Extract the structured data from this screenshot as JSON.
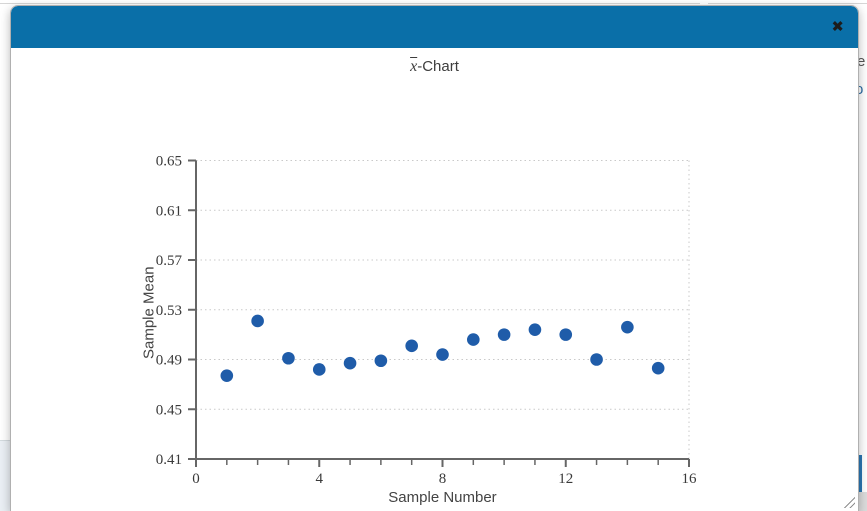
{
  "modal": {
    "close_label": "✖",
    "header_color": "#0a6fa8"
  },
  "chart_title": {
    "title_x": "x",
    "title_suffix": "-Chart"
  },
  "background": {
    "right_fragments": [
      {
        "text": "e"
      },
      {
        "text": "o"
      }
    ]
  },
  "chart_data": {
    "type": "scatter",
    "title": "x̄-Chart",
    "xlabel": "Sample Number",
    "ylabel": "Sample Mean",
    "xlim": [
      0,
      16
    ],
    "ylim": [
      0.41,
      0.65
    ],
    "x_major_ticks": [
      0,
      4,
      8,
      12,
      16
    ],
    "x_minor_tick_step": 1,
    "y_ticks": [
      0.41,
      0.45,
      0.49,
      0.53,
      0.57,
      0.61,
      0.65
    ],
    "grid": "dotted horizontal lines at y ticks; dotted vertical line at x=16",
    "point_color": "#1f5ca9",
    "axis_color": "#666666",
    "grid_color": "#c9c9c9",
    "x": [
      1,
      2,
      3,
      4,
      5,
      6,
      7,
      8,
      9,
      10,
      11,
      12,
      13,
      14,
      15
    ],
    "y": [
      0.477,
      0.521,
      0.491,
      0.482,
      0.487,
      0.489,
      0.501,
      0.494,
      0.506,
      0.51,
      0.514,
      0.51,
      0.49,
      0.516,
      0.483
    ]
  }
}
